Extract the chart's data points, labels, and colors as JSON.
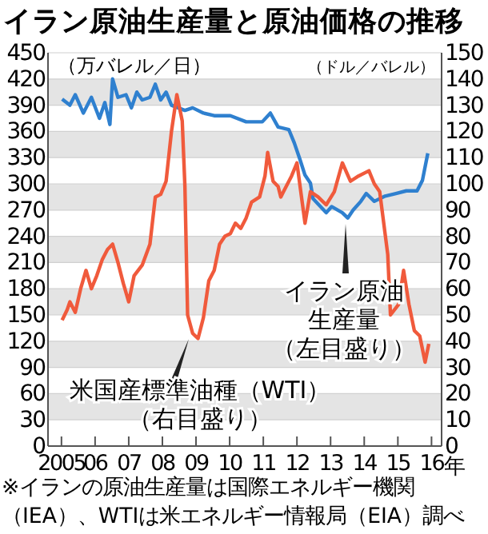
{
  "chart_data": {
    "type": "line",
    "title": "イラン原油生産量と原油価格の推移",
    "ylabel": "（万バレル／日）",
    "y2label": "（ドル／バレル）",
    "xlim": [
      2004.6,
      2016.3
    ],
    "xticks": [
      {
        "value": 2005,
        "label": "2005"
      },
      {
        "value": 2006,
        "label": "06"
      },
      {
        "value": 2007,
        "label": "07"
      },
      {
        "value": 2008,
        "label": "08"
      },
      {
        "value": 2009,
        "label": "09"
      },
      {
        "value": 2010,
        "label": "10"
      },
      {
        "value": 2011,
        "label": "11"
      },
      {
        "value": 2012,
        "label": "12"
      },
      {
        "value": 2013,
        "label": "13"
      },
      {
        "value": 2014,
        "label": "14"
      },
      {
        "value": 2015,
        "label": "15"
      },
      {
        "value": 2016,
        "label": "16"
      }
    ],
    "xlabel": "年",
    "ylim": [
      0,
      450
    ],
    "yticks": [
      0,
      30,
      60,
      90,
      120,
      150,
      180,
      210,
      240,
      270,
      300,
      330,
      360,
      390,
      420,
      450
    ],
    "y2lim": [
      0,
      150
    ],
    "y2ticks": [
      0,
      10,
      20,
      30,
      40,
      50,
      60,
      70,
      80,
      90,
      100,
      110,
      120,
      130,
      140,
      150
    ],
    "grid": "y",
    "marker": "none",
    "line_style": "solid",
    "series": [
      {
        "name": "イラン原油生産量（左目盛り）",
        "color": "#2f80cf",
        "x": [
          2005.02,
          2005.25,
          2005.41,
          2005.65,
          2005.89,
          2006.13,
          2006.29,
          2006.44,
          2006.52,
          2006.68,
          2006.92,
          2007.08,
          2007.24,
          2007.4,
          2007.63,
          2007.79,
          2007.95,
          2008.11,
          2008.27,
          2008.67,
          2008.9,
          2009.22,
          2009.54,
          2010.02,
          2010.49,
          2010.97,
          2011.21,
          2011.44,
          2011.76,
          2011.92,
          2012.08,
          2012.24,
          2012.4,
          2012.48,
          2012.87,
          2013.03,
          2013.35,
          2013.51,
          2013.67,
          2013.9,
          2014.06,
          2014.3,
          2014.62,
          2014.94,
          2015.25,
          2015.57,
          2015.73,
          2015.89
        ],
        "values": [
          397,
          390,
          402,
          381,
          399,
          375,
          393,
          368,
          420,
          399,
          402,
          387,
          405,
          396,
          399,
          414,
          396,
          405,
          390,
          384,
          387,
          381,
          378,
          378,
          371,
          371,
          381,
          365,
          362,
          347,
          329,
          310,
          301,
          283,
          267,
          274,
          267,
          261,
          270,
          280,
          289,
          280,
          286,
          289,
          292,
          292,
          304,
          335
        ]
      },
      {
        "name": "米国産標準油種（WTI）（右目盛り）",
        "axis": "y2",
        "color": "#f05a3c",
        "x": [
          2005.02,
          2005.17,
          2005.25,
          2005.41,
          2005.57,
          2005.73,
          2005.89,
          2006.05,
          2006.21,
          2006.37,
          2006.52,
          2006.68,
          2006.84,
          2007,
          2007.16,
          2007.4,
          2007.63,
          2007.79,
          2007.95,
          2008.11,
          2008.27,
          2008.43,
          2008.59,
          2008.67,
          2008.75,
          2008.9,
          2009.06,
          2009.22,
          2009.38,
          2009.54,
          2009.7,
          2009.86,
          2010.02,
          2010.17,
          2010.33,
          2010.49,
          2010.65,
          2010.89,
          2011.05,
          2011.13,
          2011.29,
          2011.44,
          2011.52,
          2011.6,
          2011.84,
          2012,
          2012.24,
          2012.4,
          2012.63,
          2012.87,
          2013.11,
          2013.35,
          2013.59,
          2013.83,
          2014.14,
          2014.3,
          2014.46,
          2014.7,
          2014.78,
          2015.02,
          2015.17,
          2015.33,
          2015.49,
          2015.65,
          2015.81,
          2015.92
        ],
        "values": [
          48,
          52,
          55,
          51,
          60,
          67,
          60,
          65,
          71,
          75,
          77,
          70,
          62,
          55,
          65,
          69,
          77,
          95,
          96,
          101,
          120,
          134,
          124,
          99,
          50,
          43,
          41,
          49,
          63,
          67,
          77,
          80,
          81,
          85,
          83,
          87,
          93,
          95,
          103,
          112,
          101,
          99,
          95,
          97,
          103,
          108,
          85,
          97,
          95,
          92,
          97,
          108,
          101,
          103,
          105,
          100,
          97,
          73,
          50,
          54,
          67,
          54,
          44,
          42,
          32,
          39
        ]
      }
    ],
    "annotations": [
      "※イランの原油生産量は国際エネルギー機関（IEA）、WTIは米エネルギー情報局（EIA）調べ"
    ]
  }
}
